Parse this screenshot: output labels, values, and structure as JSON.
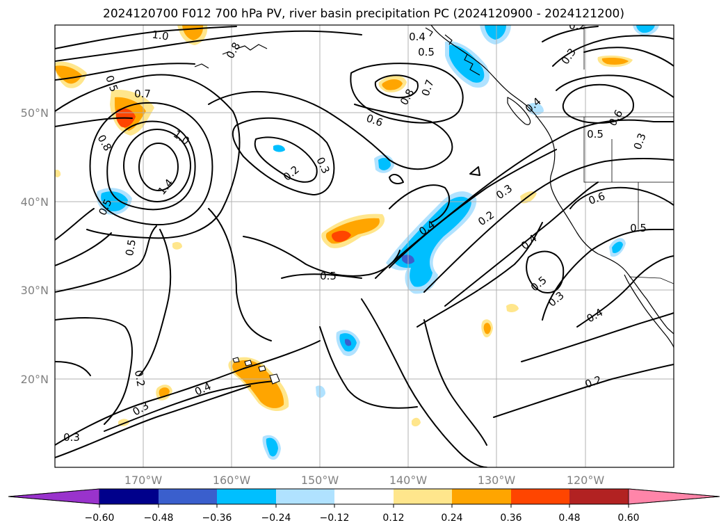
{
  "title": "2024120700 F012 700 hPa PV, river basin precipitation PC (2024120900 - 2024121200)",
  "lat_labels": [
    "50°N",
    "40°N",
    "30°N",
    "20°N"
  ],
  "lon_labels": [
    "170°W",
    "160°W",
    "150°W",
    "140°W",
    "130°W",
    "120°W"
  ],
  "colorbar": {
    "colors": [
      "#9933cc",
      "#00008b",
      "#3a5fcd",
      "#00bfff",
      "#b0e2ff",
      "#ffffff",
      "#ffe68c",
      "#ffa500",
      "#ff4500",
      "#b22222",
      "#ff85a9"
    ],
    "tick_labels": [
      "−0.60",
      "−0.48",
      "−0.36",
      "−0.24",
      "−0.12",
      "0.12",
      "0.24",
      "0.36",
      "0.48",
      "0.60"
    ],
    "extend": "both"
  },
  "contour_labels": [
    "1.0",
    "0.4",
    "0.5",
    "0.8",
    "0.7",
    "0.5",
    "0.7",
    "0.8",
    "0.6",
    "0.6",
    "0.3",
    "0.5",
    "0.6",
    "0.3",
    "0.8",
    "1.0",
    "0.2",
    "0.3",
    "1.4",
    "0.5",
    "0.5",
    "0.3",
    "0.4",
    "0.2",
    "0.4",
    "0.5",
    "0.5",
    "0.5",
    "0.3",
    "0.4",
    "0.2",
    "0.4",
    "0.3",
    "0.2",
    "0.3",
    "0.2",
    "0.4"
  ],
  "features": {
    "contours": "700 hPa potential vorticity isolines",
    "shading": "precipitation principal component pattern",
    "coastlines": true,
    "borders": true,
    "gridlines": true
  }
}
